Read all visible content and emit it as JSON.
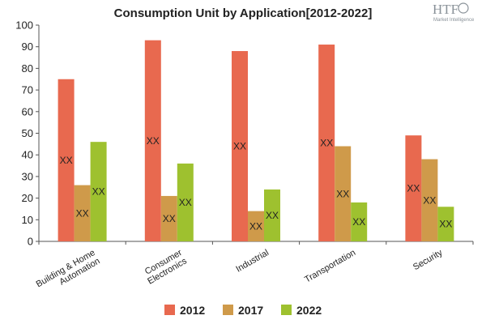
{
  "logo": {
    "mark": "HTF",
    "tagline": "Market Intelligence",
    "color": "#8a9299"
  },
  "chart_data": {
    "type": "bar",
    "title": "Consumption Unit by  Application[2012-2022]",
    "xlabel": "",
    "ylabel": "",
    "ylim": [
      0,
      100
    ],
    "yticks": [
      0,
      10,
      20,
      30,
      40,
      50,
      60,
      70,
      80,
      90,
      100
    ],
    "grid": false,
    "legend_position": "bottom",
    "categories": [
      [
        "Building & Home",
        "Automation"
      ],
      [
        "Consumer",
        "Electronics"
      ],
      [
        "Industrial"
      ],
      [
        "Transportation"
      ],
      [
        "Security"
      ]
    ],
    "series": [
      {
        "name": "2012",
        "color": "#e8694f",
        "values": [
          75,
          93,
          88,
          91,
          49
        ],
        "data_labels": [
          "XX",
          "XX",
          "XX",
          "XX",
          "XX"
        ]
      },
      {
        "name": "2017",
        "color": "#cf9a4a",
        "values": [
          26,
          21,
          14,
          44,
          38
        ],
        "data_labels": [
          "XX",
          "XX",
          "XX",
          "XX",
          "XX"
        ]
      },
      {
        "name": "2022",
        "color": "#9ec12f",
        "values": [
          46,
          36,
          24,
          18,
          16
        ],
        "data_labels": [
          "XX",
          "XX",
          "XX",
          "XX",
          "XX"
        ]
      }
    ]
  }
}
